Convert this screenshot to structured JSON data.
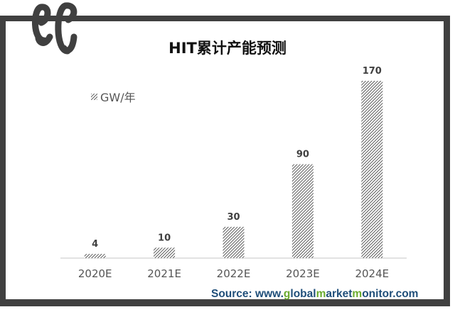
{
  "chart_data": {
    "type": "bar",
    "title": "HIT累计产能预测",
    "categories": [
      "2020E",
      "2021E",
      "2022E",
      "2023E",
      "2024E"
    ],
    "series": [
      {
        "name": "GW/年",
        "values": [
          4,
          10,
          30,
          90,
          170
        ]
      }
    ],
    "data_labels": [
      "4",
      "10",
      "30",
      "90",
      "170"
    ],
    "ylim": [
      0,
      170
    ],
    "grid": false,
    "legend": "top-left",
    "bar_fill": "diagonal-hatch",
    "colors": {
      "bar_hatch": "#333333",
      "axis": "#d9d9d9",
      "frame": "#404040"
    }
  },
  "logo": {
    "text": "EC"
  },
  "source": {
    "parts": [
      {
        "text": "Source: www.",
        "color": "blue"
      },
      {
        "text": "g",
        "color": "green"
      },
      {
        "text": "lobal",
        "color": "blue"
      },
      {
        "text": "m",
        "color": "green"
      },
      {
        "text": "arket",
        "color": "blue"
      },
      {
        "text": "m",
        "color": "green"
      },
      {
        "text": "onitor.com",
        "color": "blue"
      }
    ]
  }
}
